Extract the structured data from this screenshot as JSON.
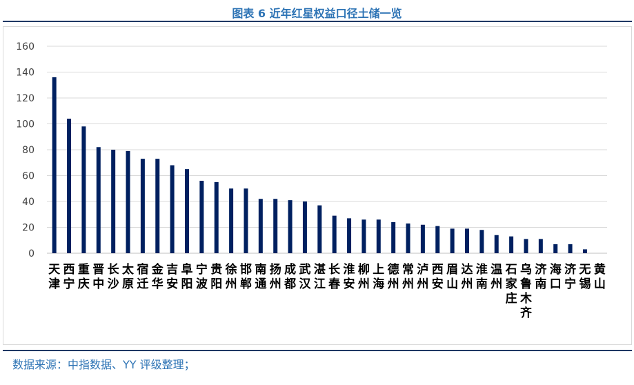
{
  "title": "图表 6 近年红星权益口径土储一览",
  "source": "数据来源：中指数据、YY 评级整理；",
  "chart_data": {
    "type": "bar",
    "title": "图表 6 近年红星权益口径土储一览",
    "xlabel": "",
    "ylabel": "",
    "ylim": [
      0,
      160
    ],
    "yticks": [
      0,
      20,
      40,
      60,
      80,
      100,
      120,
      140,
      160
    ],
    "grid": true,
    "bar_color": "#002060",
    "categories": [
      "天津",
      "西宁",
      "重庆",
      "晋中",
      "长沙",
      "太原",
      "宿迁",
      "金华",
      "吉安",
      "阜阳",
      "宁波",
      "贵阳",
      "徐州",
      "邯郸",
      "南通",
      "扬州",
      "成都",
      "武汉",
      "湛江",
      "长春",
      "淮安",
      "柳州",
      "上海",
      "德州",
      "常州",
      "泸州",
      "西安",
      "眉山",
      "达州",
      "淮南",
      "温州",
      "石家庄",
      "乌鲁木齐",
      "济南",
      "海口",
      "济宁",
      "无锡",
      "黄山"
    ],
    "values": [
      136,
      104,
      98,
      82,
      80,
      79,
      73,
      73,
      68,
      65,
      56,
      55,
      50,
      50,
      42,
      42,
      41,
      40,
      37,
      29,
      27,
      26,
      26,
      24,
      23,
      22,
      21,
      19,
      19,
      18,
      14,
      13,
      11,
      11,
      7,
      7,
      3,
      0
    ]
  }
}
